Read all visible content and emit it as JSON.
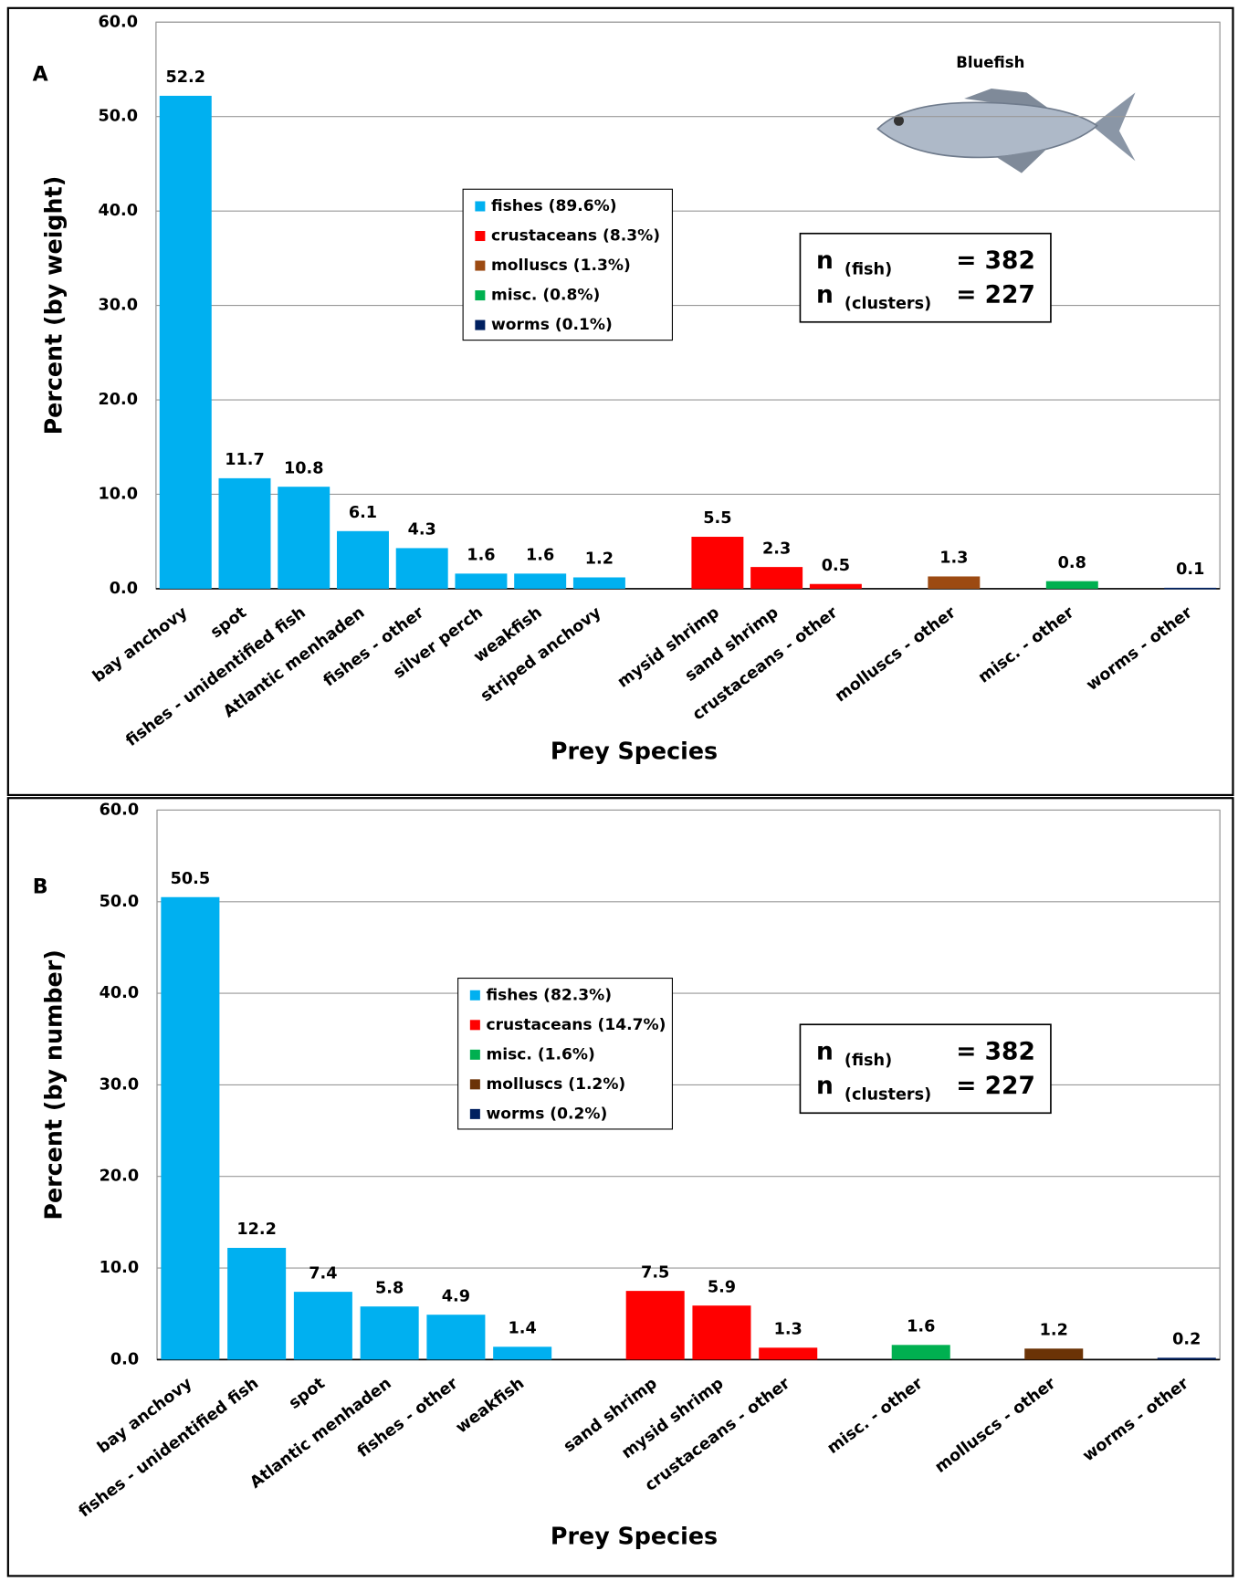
{
  "chart_data": [
    {
      "type": "bar",
      "panel_label": "A",
      "y_label": "Percent (by weight)",
      "x_label": "Prey Species",
      "image_label": "Bluefish",
      "categories": [
        "bay anchovy",
        "spot",
        "fishes - unidentified fish",
        "Atlantic menhaden",
        "fishes - other",
        "silver perch",
        "weakfish",
        "striped anchovy",
        null,
        "mysid shrimp",
        "sand shrimp",
        "crustaceans - other",
        null,
        "molluscs - other",
        null,
        "misc. - other",
        null,
        "worms - other"
      ],
      "values": [
        52.2,
        11.7,
        10.8,
        6.1,
        4.3,
        1.6,
        1.6,
        1.2,
        null,
        5.5,
        2.3,
        0.5,
        null,
        1.3,
        null,
        0.8,
        null,
        0.1
      ],
      "colors": [
        "#00b0f0",
        "#00b0f0",
        "#00b0f0",
        "#00b0f0",
        "#00b0f0",
        "#00b0f0",
        "#00b0f0",
        "#00b0f0",
        null,
        "#ff0000",
        "#ff0000",
        "#ff0000",
        null,
        "#9c4a12",
        null,
        "#00b050",
        null,
        "#002060"
      ],
      "legend": [
        {
          "name": "fishes (89.6%)",
          "color": "#00b0f0"
        },
        {
          "name": "crustaceans (8.3%)",
          "color": "#ff0000"
        },
        {
          "name": "molluscs (1.3%)",
          "color": "#9c4a12"
        },
        {
          "name": "misc. (0.8%)",
          "color": "#00b050"
        },
        {
          "name": "worms (0.1%)",
          "color": "#002060"
        }
      ],
      "sample_sizes": [
        {
          "symbol": "n",
          "subscript": "(fish)",
          "value": "= 382"
        },
        {
          "symbol": "n",
          "subscript": "(clusters)",
          "value": "= 227"
        }
      ],
      "ylim": [
        0,
        60
      ],
      "yticks": [
        {
          "value": 0,
          "label": "0.0"
        },
        {
          "value": 10,
          "label": "10.0"
        },
        {
          "value": 20,
          "label": "20.0"
        },
        {
          "value": 30,
          "label": "30.0"
        },
        {
          "value": 40,
          "label": "40.0"
        },
        {
          "value": 50,
          "label": "50.0"
        },
        {
          "value": 60,
          "label": "60.0"
        }
      ],
      "grid": true
    },
    {
      "type": "bar",
      "panel_label": "B",
      "y_label": "Percent (by number)",
      "x_label": "Prey Species",
      "categories": [
        "bay anchovy",
        "fishes - unidentified fish",
        "spot",
        "Atlantic menhaden",
        "fishes - other",
        "weakfish",
        null,
        "sand shrimp",
        "mysid shrimp",
        "crustaceans - other",
        null,
        "misc. - other",
        null,
        "molluscs - other",
        null,
        "worms - other"
      ],
      "values": [
        50.5,
        12.2,
        7.4,
        5.8,
        4.9,
        1.4,
        null,
        7.5,
        5.9,
        1.3,
        null,
        1.6,
        null,
        1.2,
        null,
        0.2
      ],
      "colors": [
        "#00b0f0",
        "#00b0f0",
        "#00b0f0",
        "#00b0f0",
        "#00b0f0",
        "#00b0f0",
        null,
        "#ff0000",
        "#ff0000",
        "#ff0000",
        null,
        "#00b050",
        null,
        "#6b3306",
        null,
        "#002060"
      ],
      "legend": [
        {
          "name": "fishes (82.3%)",
          "color": "#00b0f0"
        },
        {
          "name": "crustaceans (14.7%)",
          "color": "#ff0000"
        },
        {
          "name": "misc. (1.6%)",
          "color": "#00b050"
        },
        {
          "name": "molluscs (1.2%)",
          "color": "#6b3306"
        },
        {
          "name": "worms (0.2%)",
          "color": "#002060"
        }
      ],
      "sample_sizes": [
        {
          "symbol": "n",
          "subscript": "(fish)",
          "value": "= 382"
        },
        {
          "symbol": "n",
          "subscript": "(clusters)",
          "value": "= 227"
        }
      ],
      "ylim": [
        0,
        60
      ],
      "yticks": [
        {
          "value": 0,
          "label": "0.0"
        },
        {
          "value": 10,
          "label": "10.0"
        },
        {
          "value": 20,
          "label": "20.0"
        },
        {
          "value": 30,
          "label": "30.0"
        },
        {
          "value": 40,
          "label": "40.0"
        },
        {
          "value": 50,
          "label": "50.0"
        },
        {
          "value": 60,
          "label": "60.0"
        }
      ],
      "grid": true
    }
  ]
}
